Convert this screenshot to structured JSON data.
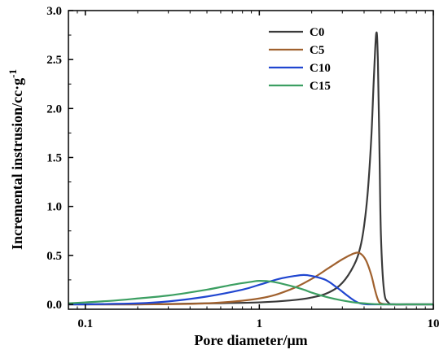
{
  "chart_data": {
    "type": "line",
    "xlabel": "Pore diameter/μm",
    "ylabel": "Incremental instrusion/cc·g",
    "ylabel_sup": "-1",
    "x_scale": "log",
    "xlim": [
      0.08,
      10
    ],
    "ylim": [
      -0.05,
      3.0
    ],
    "x_ticks": [
      0.1,
      1,
      10
    ],
    "x_tick_labels": [
      "0.1",
      "1",
      "10"
    ],
    "y_ticks": [
      0.0,
      0.5,
      1.0,
      1.5,
      2.0,
      2.5,
      3.0
    ],
    "y_tick_labels": [
      "0.0",
      "0.5",
      "1.0",
      "1.5",
      "2.0",
      "2.5",
      "3.0"
    ],
    "grid": false,
    "legend_position": "top-right",
    "series": [
      {
        "name": "C0",
        "color": "#3a3a3a",
        "x": [
          0.08,
          0.1,
          0.2,
          0.5,
          1.0,
          1.5,
          2.0,
          2.5,
          3.0,
          3.5,
          3.8,
          4.0,
          4.2,
          4.4,
          4.55,
          4.7,
          4.8,
          4.9,
          5.0,
          5.2,
          5.5,
          6.0,
          7.0,
          10.0
        ],
        "y": [
          0.0,
          0.0,
          0.0,
          0.01,
          0.02,
          0.04,
          0.07,
          0.12,
          0.22,
          0.4,
          0.58,
          0.8,
          1.15,
          1.7,
          2.3,
          2.77,
          2.5,
          1.6,
          0.7,
          0.15,
          0.02,
          0.0,
          0.0,
          0.0
        ]
      },
      {
        "name": "C5",
        "color": "#a0612e",
        "x": [
          0.08,
          0.1,
          0.2,
          0.5,
          1.0,
          1.5,
          2.0,
          2.5,
          3.0,
          3.5,
          3.8,
          4.1,
          4.4,
          4.6,
          4.8,
          5.0,
          5.5,
          6.0,
          7.0,
          10.0
        ],
        "y": [
          0.0,
          0.0,
          0.0,
          0.01,
          0.06,
          0.15,
          0.26,
          0.37,
          0.46,
          0.52,
          0.52,
          0.45,
          0.3,
          0.16,
          0.05,
          0.01,
          0.0,
          0.0,
          0.0,
          0.0
        ]
      },
      {
        "name": "C10",
        "color": "#2046d0",
        "x": [
          0.08,
          0.1,
          0.2,
          0.3,
          0.5,
          0.8,
          1.0,
          1.3,
          1.6,
          1.8,
          2.0,
          2.4,
          2.8,
          3.2,
          3.5,
          3.8,
          4.2,
          5.0,
          7.0,
          10.0
        ],
        "y": [
          0.0,
          0.0,
          0.01,
          0.03,
          0.08,
          0.15,
          0.2,
          0.26,
          0.29,
          0.3,
          0.29,
          0.25,
          0.17,
          0.09,
          0.04,
          0.01,
          0.0,
          0.0,
          0.0,
          0.0
        ]
      },
      {
        "name": "C15",
        "color": "#3c9f62",
        "x": [
          0.08,
          0.1,
          0.15,
          0.2,
          0.3,
          0.5,
          0.7,
          0.9,
          1.0,
          1.2,
          1.5,
          1.8,
          2.0,
          2.5,
          3.0,
          3.5,
          4.0,
          5.0,
          7.0,
          10.0
        ],
        "y": [
          0.01,
          0.02,
          0.04,
          0.06,
          0.09,
          0.15,
          0.2,
          0.23,
          0.24,
          0.23,
          0.19,
          0.15,
          0.12,
          0.07,
          0.04,
          0.02,
          0.01,
          0.0,
          0.0,
          0.0
        ]
      }
    ]
  }
}
